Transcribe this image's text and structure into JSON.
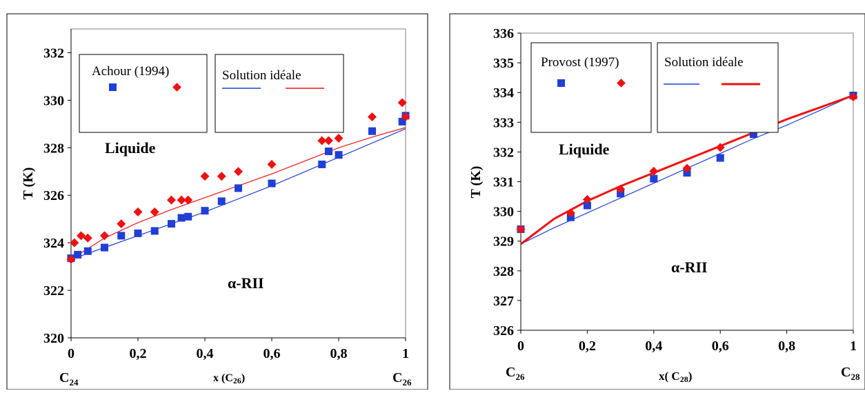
{
  "chart_data": [
    {
      "type": "scatter",
      "ylabel": "T (K)",
      "xlabel": "x (C26)",
      "xlabel_main": "x (C",
      "xlabel_sub": "26",
      "xlabel_close": ")",
      "x_end_labels": [
        {
          "main": "C",
          "sub": "24"
        },
        {
          "main": "C",
          "sub": "26"
        }
      ],
      "xlim": [
        0,
        1
      ],
      "ylim": [
        320,
        333
      ],
      "xticks": [
        0,
        0.2,
        0.4,
        0.6,
        0.8,
        1
      ],
      "xtick_labels": [
        "0",
        "0,2",
        "0,4",
        "0,6",
        "0,8",
        "1"
      ],
      "yticks": [
        320,
        322,
        324,
        326,
        328,
        330,
        332
      ],
      "ytick_labels": [
        "320",
        "322",
        "324",
        "326",
        "328",
        "330",
        "332"
      ],
      "region_labels": [
        "Liquide",
        "α-RII"
      ],
      "legend_boxes": [
        "Achour (1994)",
        "Solution idéale"
      ],
      "series": [
        {
          "kind": "points",
          "marker": "square",
          "color": "#1f3fd6",
          "x": [
            0,
            0.02,
            0.05,
            0.1,
            0.15,
            0.2,
            0.25,
            0.3,
            0.33,
            0.35,
            0.4,
            0.45,
            0.5,
            0.6,
            0.75,
            0.77,
            0.8,
            0.9,
            0.99,
            1.0
          ],
          "y": [
            323.35,
            323.5,
            323.65,
            323.8,
            324.3,
            324.4,
            324.5,
            324.8,
            325.05,
            325.1,
            325.35,
            325.75,
            326.3,
            326.5,
            327.3,
            327.85,
            327.7,
            328.7,
            329.1,
            329.35
          ]
        },
        {
          "kind": "points",
          "marker": "diamond",
          "color": "#ee1111",
          "x": [
            0,
            0.01,
            0.03,
            0.05,
            0.1,
            0.15,
            0.2,
            0.25,
            0.3,
            0.33,
            0.35,
            0.4,
            0.45,
            0.5,
            0.6,
            0.75,
            0.77,
            0.8,
            0.9,
            0.99,
            1.0
          ],
          "y": [
            323.3,
            324.0,
            324.3,
            324.2,
            324.3,
            324.8,
            325.3,
            325.3,
            325.8,
            325.8,
            325.8,
            326.8,
            326.8,
            327.0,
            327.3,
            328.3,
            328.3,
            328.4,
            329.3,
            329.9,
            329.3
          ]
        },
        {
          "kind": "line",
          "color": "#1f3fd6",
          "width": 1.2,
          "x": [
            0,
            0.1,
            0.2,
            0.3,
            0.4,
            0.5,
            0.6,
            0.7,
            0.8,
            0.9,
            1.0
          ],
          "y": [
            323.3,
            323.8,
            324.3,
            324.8,
            325.3,
            325.85,
            326.4,
            327.0,
            327.6,
            328.2,
            328.8
          ]
        },
        {
          "kind": "line",
          "color": "#ee1111",
          "width": 1.2,
          "x": [
            0,
            0.1,
            0.2,
            0.3,
            0.4,
            0.5,
            0.6,
            0.7,
            0.8,
            0.9,
            1.0
          ],
          "y": [
            323.3,
            324.2,
            324.85,
            325.4,
            325.9,
            326.4,
            326.9,
            327.45,
            328.0,
            328.45,
            328.85
          ]
        }
      ]
    },
    {
      "type": "scatter",
      "ylabel": "T (K)",
      "xlabel": "x( C28)",
      "xlabel_main": "x( C",
      "xlabel_sub": "28",
      "xlabel_close": ")",
      "x_end_labels": [
        {
          "main": "C",
          "sub": "26"
        },
        {
          "main": "C",
          "sub": "28"
        }
      ],
      "xlim": [
        0,
        1
      ],
      "ylim": [
        326,
        336
      ],
      "xticks": [
        0,
        0.2,
        0.4,
        0.6,
        0.8,
        1
      ],
      "xtick_labels": [
        "0",
        "0,2",
        "0,4",
        "0,6",
        "0,8",
        "1"
      ],
      "yticks": [
        326,
        327,
        328,
        329,
        330,
        331,
        332,
        333,
        334,
        335,
        336
      ],
      "ytick_labels": [
        "326",
        "327",
        "328",
        "329",
        "330",
        "331",
        "332",
        "333",
        "334",
        "335",
        "336"
      ],
      "region_labels": [
        "Liquide",
        "α-RII"
      ],
      "legend_boxes": [
        "Provost (1997)",
        "Solution idéale"
      ],
      "series": [
        {
          "kind": "points",
          "marker": "square",
          "color": "#1f3fd6",
          "x": [
            0,
            0.15,
            0.2,
            0.3,
            0.4,
            0.5,
            0.6,
            0.7,
            1.0
          ],
          "y": [
            329.4,
            329.8,
            330.2,
            330.6,
            331.1,
            331.3,
            331.8,
            332.6,
            333.9
          ]
        },
        {
          "kind": "points",
          "marker": "diamond",
          "color": "#ee1111",
          "x": [
            0,
            0.15,
            0.2,
            0.3,
            0.4,
            0.5,
            0.6,
            0.7,
            1.0
          ],
          "y": [
            329.4,
            329.95,
            330.4,
            330.75,
            331.35,
            331.45,
            332.15,
            332.75,
            333.85
          ]
        },
        {
          "kind": "line",
          "color": "#1f3fd6",
          "width": 1.2,
          "x": [
            0,
            0.1,
            0.2,
            0.3,
            0.4,
            0.5,
            0.6,
            0.7,
            0.8,
            0.9,
            1.0
          ],
          "y": [
            328.9,
            329.45,
            329.95,
            330.45,
            330.95,
            331.45,
            331.95,
            332.45,
            332.9,
            333.4,
            333.9
          ]
        },
        {
          "kind": "line",
          "color": "#ee1111",
          "width": 3,
          "x": [
            0,
            0.1,
            0.2,
            0.3,
            0.4,
            0.5,
            0.6,
            0.7,
            0.8,
            0.9,
            1.0
          ],
          "y": [
            328.9,
            329.75,
            330.35,
            330.85,
            331.3,
            331.75,
            332.2,
            332.65,
            333.1,
            333.5,
            333.9
          ]
        }
      ]
    }
  ]
}
